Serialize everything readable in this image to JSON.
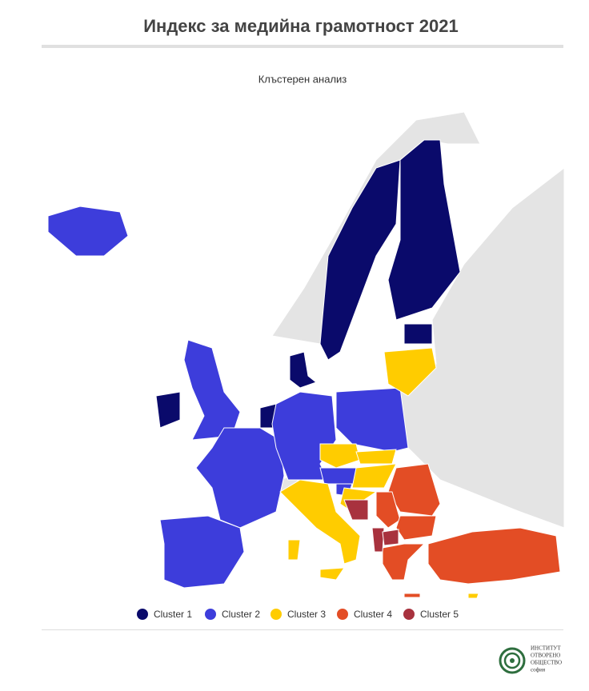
{
  "title": "Индекс за медийна грамотност 2021",
  "subtitle": "Клъстерен анализ",
  "legend": {
    "items": [
      {
        "label": "Cluster 1",
        "color": "#0a0a6b"
      },
      {
        "label": "Cluster 2",
        "color": "#3d3ddb"
      },
      {
        "label": "Cluster 3",
        "color": "#ffcc00"
      },
      {
        "label": "Cluster 4",
        "color": "#e34d25"
      },
      {
        "label": "Cluster 5",
        "color": "#a8323e"
      }
    ]
  },
  "logo": {
    "lines": [
      "ИНСТИТУТ",
      "ОТВОРЕНО",
      "ОБЩЕСТВО",
      "софия"
    ]
  }
}
